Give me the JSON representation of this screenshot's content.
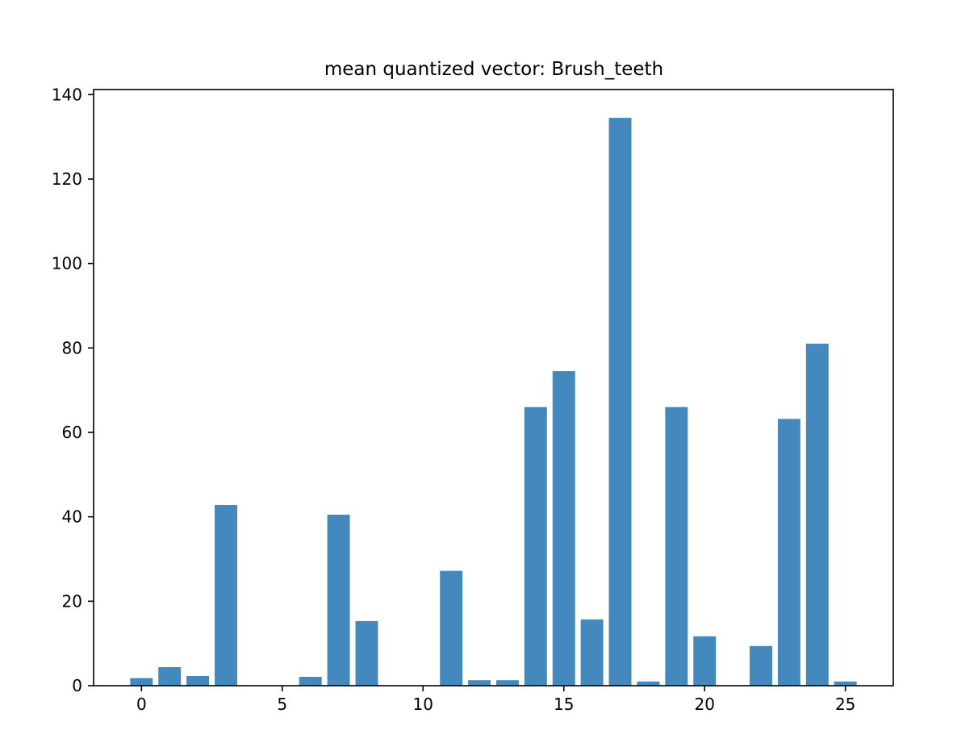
{
  "chart_data": {
    "type": "bar",
    "title": "mean quantized vector: Brush_teeth",
    "xlabel": "",
    "ylabel": "",
    "x": [
      0,
      1,
      2,
      3,
      4,
      5,
      6,
      7,
      8,
      9,
      10,
      11,
      12,
      13,
      14,
      15,
      16,
      17,
      18,
      19,
      20,
      21,
      22,
      23,
      24,
      25
    ],
    "values": [
      1.8,
      4.4,
      2.3,
      42.8,
      0,
      0,
      2.1,
      40.5,
      15.3,
      0,
      0,
      27.2,
      1.3,
      1.3,
      66,
      74.5,
      15.7,
      134.5,
      1.0,
      66,
      11.7,
      0,
      9.4,
      63.2,
      81,
      1.0
    ],
    "bar_color": "#4389be",
    "xlim": [
      -1.7,
      26.7
    ],
    "ylim": [
      0,
      141.2
    ],
    "xticks": [
      0,
      5,
      10,
      15,
      20,
      25
    ],
    "yticks": [
      0,
      20,
      40,
      60,
      80,
      100,
      120,
      140
    ],
    "grid": false,
    "legend": "none"
  }
}
